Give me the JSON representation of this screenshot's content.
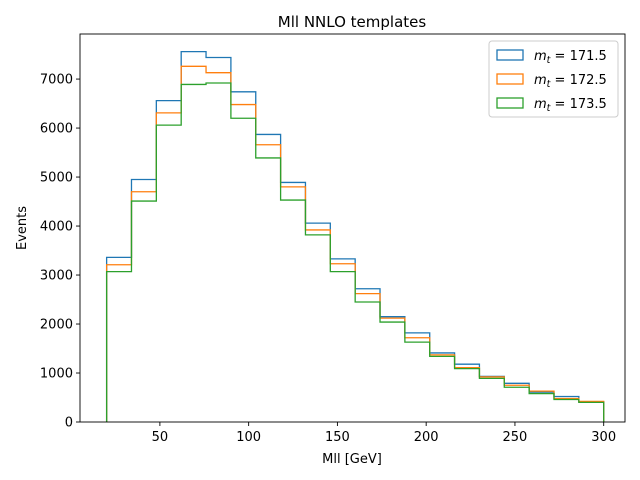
{
  "chart_data": {
    "type": "histogram-step",
    "title": "Mll NNLO templates",
    "xlabel": "Mll [GeV]",
    "ylabel": "Events",
    "xlim": [
      5,
      312
    ],
    "ylim": [
      0,
      7920
    ],
    "xticks": [
      50,
      100,
      150,
      200,
      250,
      300
    ],
    "yticks": [
      0,
      1000,
      2000,
      3000,
      4000,
      5000,
      6000,
      7000
    ],
    "legend_position": "top-right",
    "grid": false,
    "bin_edges": [
      20,
      34,
      48,
      62,
      76,
      90,
      104,
      118,
      132,
      146,
      160,
      174,
      188,
      202,
      216,
      230,
      244,
      258,
      272,
      286,
      300
    ],
    "series": [
      {
        "name": "m_t = 171.5",
        "name_main": "m",
        "name_sub": "t",
        "name_rest": " = 171.5",
        "color": "#1f77b4",
        "values": [
          3360,
          4950,
          6560,
          7560,
          7440,
          6740,
          5870,
          4890,
          4060,
          3330,
          2720,
          2150,
          1820,
          1410,
          1180,
          930,
          790,
          610,
          520,
          410
        ]
      },
      {
        "name": "m_t = 172.5",
        "name_main": "m",
        "name_sub": "t",
        "name_rest": " = 172.5",
        "color": "#ff7f0e",
        "values": [
          3210,
          4700,
          6310,
          7260,
          7130,
          6480,
          5660,
          4800,
          3920,
          3230,
          2620,
          2120,
          1720,
          1370,
          1110,
          920,
          750,
          630,
          480,
          420
        ]
      },
      {
        "name": "m_t = 173.5",
        "name_main": "m",
        "name_sub": "t",
        "name_rest": " = 173.5",
        "color": "#2ca02c",
        "values": [
          3070,
          4510,
          6060,
          6890,
          6920,
          6200,
          5390,
          4530,
          3820,
          3070,
          2450,
          2040,
          1630,
          1340,
          1090,
          890,
          710,
          580,
          460,
          400
        ]
      }
    ]
  }
}
